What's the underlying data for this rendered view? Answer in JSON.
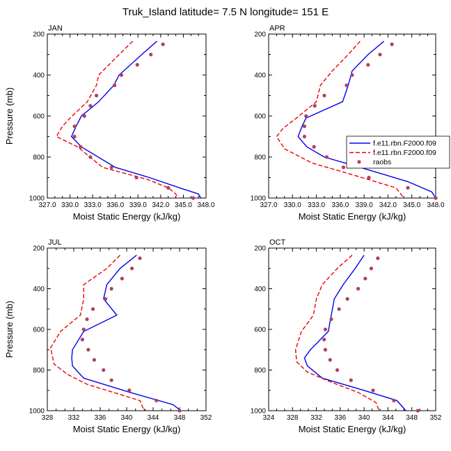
{
  "figure_title": "Truk_Island  latitude= 7.5 N longitude= 151 E",
  "legend": {
    "entries": [
      {
        "label": "f.e11.rbn.F2000.f09",
        "style": "solid",
        "color": "#0000ee"
      },
      {
        "label": "f.e11.rbn.F2000.f09",
        "style": "dashed",
        "color": "#ee0000"
      },
      {
        "label": "raobs",
        "style": "marker",
        "color": "#b04060"
      }
    ]
  },
  "colors": {
    "model1": "#0000ee",
    "model2": "#ee0000",
    "obs": "#b04060"
  },
  "chart_data": [
    {
      "type": "line",
      "panel_title": "JAN",
      "xlabel": "Moist Static Energy (kJ/kg)",
      "ylabel": "Pressure (mb)",
      "xlim": [
        327,
        348
      ],
      "xticks": [
        "327.0",
        "330.0",
        "333.0",
        "336.0",
        "339.0",
        "342.0",
        "345.0",
        "348.0"
      ],
      "ylim": [
        200,
        1000
      ],
      "yticks": [
        "200",
        "400",
        "600",
        "800",
        "1000"
      ],
      "y_inverted": true,
      "series": [
        {
          "name": "f.e11.rbn.F2000.f09",
          "style": "solid",
          "x": [
            341.5,
            339.5,
            336.5,
            335.8,
            333.8,
            331.5,
            330.8,
            330.2,
            331.5,
            336.0,
            340.5,
            344.5,
            347.0,
            347.3
          ],
          "y": [
            235,
            300,
            400,
            450,
            530,
            600,
            650,
            700,
            750,
            850,
            900,
            950,
            980,
            1000
          ]
        },
        {
          "name": "f.e11.rbn.F2000.f09",
          "style": "dashed",
          "x": [
            338.3,
            336.5,
            333.8,
            333.5,
            332.3,
            330.0,
            329.0,
            328.2,
            331.0,
            334.3,
            340.3,
            343.0,
            344.0,
            344.3
          ],
          "y": [
            235,
            300,
            400,
            450,
            530,
            610,
            650,
            700,
            750,
            850,
            910,
            950,
            980,
            1000
          ]
        },
        {
          "name": "raobs",
          "style": "marker",
          "x": [
            342.3,
            340.7,
            338.9,
            336.8,
            335.9,
            333.5,
            332.7,
            331.9,
            330.6,
            330.6,
            331.4,
            332.7,
            335.5,
            338.8,
            343.0,
            346.3
          ],
          "y": [
            250,
            300,
            350,
            400,
            450,
            500,
            550,
            600,
            650,
            700,
            750,
            800,
            850,
            900,
            950,
            1000
          ]
        }
      ]
    },
    {
      "type": "line",
      "panel_title": "APR",
      "xlabel": "Moist Static Energy (kJ/kg)",
      "ylabel": "",
      "xlim": [
        327,
        348
      ],
      "xticks": [
        "327.0",
        "330.0",
        "333.0",
        "336.0",
        "339.0",
        "342.0",
        "345.0",
        "348.0"
      ],
      "ylim": [
        200,
        1000
      ],
      "yticks": [
        "200",
        "400",
        "600",
        "800",
        "1000"
      ],
      "y_inverted": true,
      "series": [
        {
          "name": "f.e11.rbn.F2000.f09",
          "style": "solid",
          "x": [
            341.5,
            339.5,
            337.5,
            337.0,
            336.3,
            331.7,
            331.2,
            330.7,
            331.8,
            334.0,
            338.5,
            344.5,
            347.5,
            348.0
          ],
          "y": [
            235,
            300,
            380,
            450,
            530,
            610,
            650,
            700,
            750,
            800,
            850,
            920,
            970,
            1000
          ]
        },
        {
          "name": "f.e11.rbn.F2000.f09",
          "style": "dashed",
          "x": [
            338.5,
            337.0,
            335.0,
            333.5,
            333.0,
            330.5,
            328.8,
            328.0,
            329.0,
            332.5,
            337.0,
            343.0,
            344.0
          ],
          "y": [
            235,
            300,
            380,
            450,
            530,
            610,
            660,
            700,
            760,
            830,
            880,
            950,
            1000
          ]
        },
        {
          "name": "raobs",
          "style": "marker",
          "x": [
            342.5,
            341.0,
            339.5,
            337.5,
            336.8,
            334.0,
            332.8,
            331.7,
            331.5,
            331.5,
            332.7,
            334.3,
            336.4,
            339.6,
            344.5,
            348.0
          ],
          "y": [
            250,
            300,
            350,
            400,
            450,
            500,
            550,
            600,
            650,
            700,
            750,
            800,
            850,
            900,
            950,
            1000
          ]
        }
      ]
    },
    {
      "type": "line",
      "panel_title": "JUL",
      "xlabel": "Moist Static Energy (kJ/kg)",
      "ylabel": "Pressure (mb)",
      "xlim": [
        328,
        352
      ],
      "xticks": [
        "328",
        "332",
        "336",
        "340",
        "344",
        "348",
        "352"
      ],
      "ylim": [
        200,
        1000
      ],
      "yticks": [
        "200",
        "400",
        "600",
        "800",
        "1000"
      ],
      "y_inverted": true,
      "series": [
        {
          "name": "f.e11.rbn.F2000.f09",
          "style": "solid",
          "x": [
            341.5,
            339.0,
            337.0,
            336.5,
            338.5,
            333.5,
            331.8,
            331.7,
            331.8,
            333.5,
            340.5,
            347.0,
            348.2
          ],
          "y": [
            235,
            300,
            380,
            450,
            530,
            610,
            700,
            740,
            780,
            840,
            910,
            970,
            1000
          ]
        },
        {
          "name": "f.e11.rbn.F2000.f09",
          "style": "dashed",
          "x": [
            339.0,
            337.0,
            333.5,
            333.5,
            333.0,
            330.0,
            328.5,
            329.0,
            331.0,
            334.0,
            338.0,
            342.0,
            342.5,
            343.0
          ],
          "y": [
            235,
            300,
            380,
            450,
            530,
            610,
            690,
            770,
            820,
            870,
            910,
            950,
            990,
            1000
          ]
        },
        {
          "name": "raobs",
          "style": "marker",
          "x": [
            342.0,
            340.8,
            339.3,
            337.7,
            336.8,
            334.9,
            334.0,
            333.5,
            333.3,
            334.2,
            335.1,
            336.5,
            337.7,
            340.4,
            344.5,
            348.0
          ],
          "y": [
            250,
            300,
            350,
            400,
            450,
            500,
            550,
            600,
            650,
            700,
            750,
            800,
            850,
            900,
            950,
            1000
          ]
        }
      ]
    },
    {
      "type": "line",
      "panel_title": "OCT",
      "xlabel": "Moist Static Energy (kJ/kg)",
      "ylabel": "",
      "xlim": [
        324,
        352
      ],
      "xticks": [
        "324",
        "328",
        "332",
        "336",
        "340",
        "344",
        "348",
        "352"
      ],
      "ylim": [
        200,
        1000
      ],
      "yticks": [
        "200",
        "400",
        "600",
        "800",
        "1000"
      ],
      "y_inverted": true,
      "series": [
        {
          "name": "f.e11.rbn.F2000.f09",
          "style": "solid",
          "x": [
            340.0,
            338.5,
            336.5,
            335.0,
            334.5,
            334.0,
            331.0,
            330.0,
            330.5,
            333.0,
            340.0,
            345.5,
            347.0
          ],
          "y": [
            235,
            300,
            380,
            450,
            530,
            610,
            700,
            740,
            780,
            840,
            900,
            950,
            1000
          ]
        },
        {
          "name": "f.e11.rbn.F2000.f09",
          "style": "dashed",
          "x": [
            338.0,
            335.5,
            333.0,
            332.0,
            331.5,
            329.5,
            328.5,
            328.7,
            330.5,
            334.5,
            339.0,
            342.0,
            342.5
          ],
          "y": [
            235,
            300,
            380,
            450,
            530,
            610,
            700,
            760,
            810,
            860,
            910,
            960,
            1000
          ]
        },
        {
          "name": "raobs",
          "style": "marker",
          "x": [
            342.3,
            341.2,
            340.2,
            339.0,
            337.2,
            335.8,
            334.5,
            333.5,
            333.3,
            333.5,
            334.3,
            335.5,
            337.8,
            341.5,
            345.0,
            349.0
          ],
          "y": [
            250,
            300,
            350,
            400,
            450,
            500,
            550,
            600,
            650,
            700,
            750,
            800,
            850,
            900,
            950,
            1000
          ]
        }
      ]
    }
  ]
}
